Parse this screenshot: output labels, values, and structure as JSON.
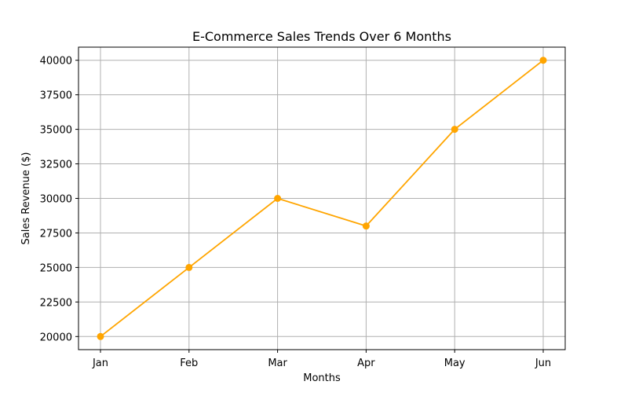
{
  "chart_data": {
    "type": "line",
    "title": "E-Commerce Sales Trends Over 6 Months",
    "xlabel": "Months",
    "ylabel": "Sales Revenue ($)",
    "categories": [
      "Jan",
      "Feb",
      "Mar",
      "Apr",
      "May",
      "Jun"
    ],
    "series": [
      {
        "values": [
          20000,
          25000,
          30000,
          28000,
          35000,
          40000
        ],
        "color": "#ffa500",
        "marker": "circle"
      }
    ],
    "ylim": [
      19050,
      40950
    ],
    "yticks": [
      20000,
      22500,
      25000,
      27500,
      30000,
      32500,
      35000,
      37500,
      40000
    ],
    "grid": true,
    "grid_color": "#b0b0b0",
    "legend": "none"
  }
}
